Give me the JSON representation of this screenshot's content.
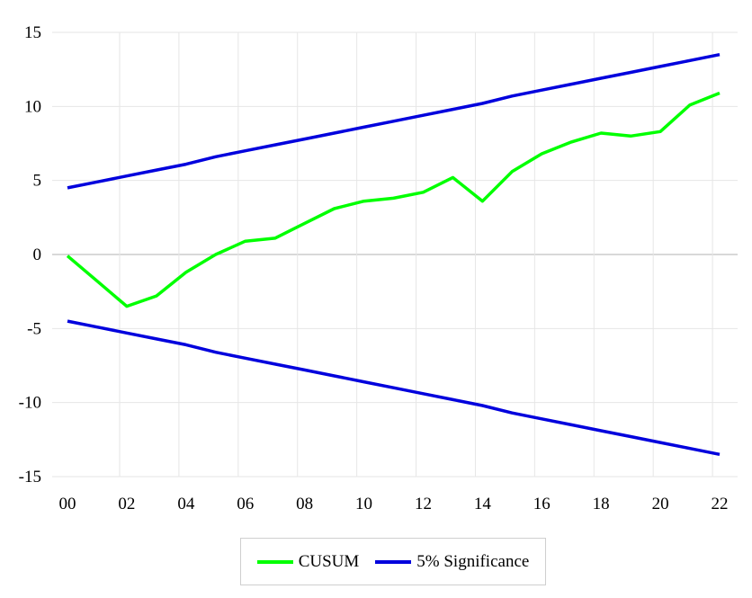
{
  "chart_data": {
    "type": "line",
    "x": [
      "2000",
      "2001",
      "2002",
      "2003",
      "2004",
      "2005",
      "2006",
      "2007",
      "2008",
      "2009",
      "2010",
      "2011",
      "2012",
      "2013",
      "2014",
      "2015",
      "2016",
      "2017",
      "2018",
      "2019",
      "2020",
      "2021",
      "2022"
    ],
    "x_tick_labels": [
      "00",
      "02",
      "04",
      "06",
      "08",
      "10",
      "12",
      "14",
      "16",
      "18",
      "20",
      "22"
    ],
    "y_ticks": [
      15,
      10,
      5,
      0,
      -5,
      -10,
      -15
    ],
    "ylim": [
      -15,
      15
    ],
    "grid": true,
    "legend_position": "bottom-center",
    "series": [
      {
        "name": "CUSUM",
        "color": "#00ff00",
        "values": [
          -0.1,
          -1.8,
          -3.5,
          -2.8,
          -1.2,
          0.0,
          0.9,
          1.1,
          2.1,
          3.1,
          3.6,
          3.8,
          4.2,
          5.2,
          3.6,
          5.6,
          6.8,
          7.6,
          8.2,
          8.0,
          8.3,
          10.1,
          10.9
        ]
      },
      {
        "name": "5% Significance",
        "color": "#0000dd",
        "values": [
          4.5,
          4.9,
          5.3,
          5.7,
          6.1,
          6.6,
          7.0,
          7.4,
          7.8,
          8.2,
          8.6,
          9.0,
          9.4,
          9.8,
          10.2,
          10.7,
          11.1,
          11.5,
          11.9,
          12.3,
          12.7,
          13.1,
          13.5
        ]
      },
      {
        "name": "",
        "color": "#0000dd",
        "values": [
          -4.5,
          -4.9,
          -5.3,
          -5.7,
          -6.1,
          -6.6,
          -7.0,
          -7.4,
          -7.8,
          -8.2,
          -8.6,
          -9.0,
          -9.4,
          -9.8,
          -10.2,
          -10.7,
          -11.1,
          -11.5,
          -11.9,
          -12.3,
          -12.7,
          -13.1,
          -13.5
        ]
      }
    ]
  },
  "legend": {
    "items": [
      {
        "label": "CUSUM",
        "color": "#00ff00"
      },
      {
        "label": "5% Significance",
        "color": "#0000dd"
      }
    ]
  }
}
